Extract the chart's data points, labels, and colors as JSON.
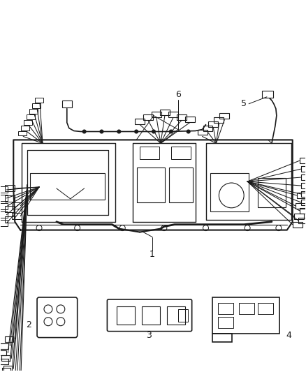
{
  "background_color": "#ffffff",
  "line_color": "#1a1a1a",
  "fig_width": 4.38,
  "fig_height": 5.33,
  "dpi": 100
}
